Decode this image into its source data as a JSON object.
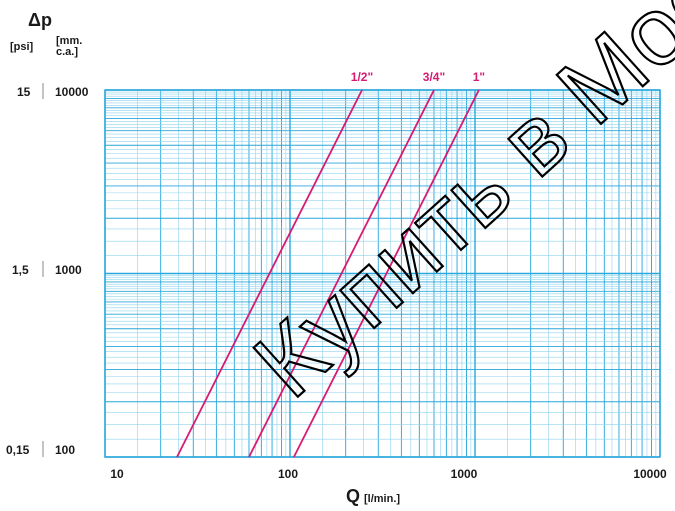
{
  "chart_data": {
    "type": "line",
    "xscale": "log",
    "yscale": "log",
    "x_label_symbol": "Q",
    "x_label_unit": "[l/min.]",
    "y_label_symbol": "Δp",
    "y_label_unit_left": "[psi]",
    "y_label_unit_right": "[mm. c.a.]",
    "y_label_unit_right_line1": "[mm.",
    "y_label_unit_right_line2": "c.a.]",
    "xlim": [
      10,
      10000
    ],
    "ylim": [
      100,
      10000
    ],
    "x_ticks": [
      "10",
      "100",
      "1000",
      "10000"
    ],
    "y_ticks_mm": [
      "100",
      "1000",
      "10000"
    ],
    "y_ticks_psi": [
      "0,15",
      "1,5",
      "15"
    ],
    "grid": true,
    "series": [
      {
        "name": "1/2\"",
        "x": [
          24.5,
          245
        ],
        "y": [
          100,
          10000
        ]
      },
      {
        "name": "3/4\"",
        "x": [
          60,
          600
        ],
        "y": [
          100,
          10000
        ]
      },
      {
        "name": "1\"",
        "x": [
          105,
          1050
        ],
        "y": [
          100,
          10000
        ]
      }
    ],
    "watermark": "Купить в Мос"
  },
  "colors": {
    "grid_minor": "#8fd3ee",
    "grid_major": "#2aa7dc",
    "series": "#d81b72",
    "text": "#1a1a1a",
    "frame": "#2aa7dc"
  }
}
